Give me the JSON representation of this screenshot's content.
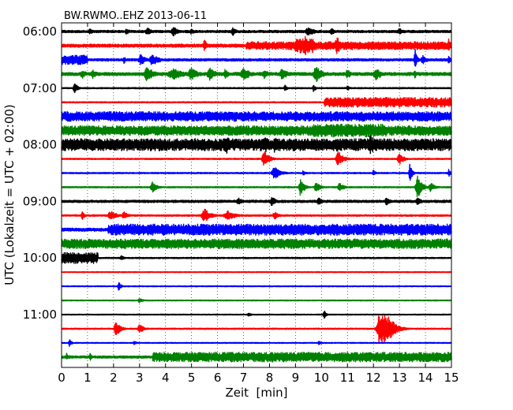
{
  "chart_data": {
    "type": "line",
    "title": "BW.RWMO..EHZ 2013-06-11",
    "xlabel": "Zeit  [min]",
    "ylabel": "UTC (Lokalzeit = UTC + 02:00)",
    "xlim": [
      0,
      15
    ],
    "x_ticks": [
      "0",
      "1",
      "2",
      "3",
      "4",
      "5",
      "6",
      "7",
      "8",
      "9",
      "10",
      "11",
      "12",
      "13",
      "14",
      "15"
    ],
    "y_tick_labels": [
      "06:00",
      "07:00",
      "08:00",
      "09:00",
      "10:00",
      "11:00"
    ],
    "y_tick_rows": [
      0,
      4,
      8,
      12,
      16,
      20
    ],
    "grid": "vertical dotted at each minute",
    "colors": {
      "black": "#000000",
      "red": "#ff0000",
      "blue": "#0000ff",
      "green": "#008000"
    },
    "traces": [
      {
        "start": "06:00",
        "color": "black",
        "base_amp": 1.5,
        "bands": [],
        "events": [
          [
            1.1,
            0.08,
            4
          ],
          [
            2.5,
            0.08,
            4
          ],
          [
            3.3,
            0.1,
            5
          ],
          [
            4.3,
            0.1,
            7
          ],
          [
            5.0,
            0.08,
            4
          ],
          [
            6.6,
            0.1,
            5
          ],
          [
            9.5,
            0.15,
            6
          ],
          [
            10.4,
            0.1,
            4
          ],
          [
            13.0,
            0.15,
            4
          ]
        ]
      },
      {
        "start": "06:15",
        "color": "red",
        "base_amp": 2.0,
        "bands": [
          [
            7.1,
            15.0,
            5
          ],
          [
            9.0,
            9.7,
            9
          ]
        ],
        "events": [
          [
            5.5,
            0.05,
            10
          ],
          [
            9.4,
            0.3,
            12
          ],
          [
            10.6,
            0.1,
            12
          ],
          [
            14.9,
            0.05,
            10
          ]
        ]
      },
      {
        "start": "06:30",
        "color": "blue",
        "base_amp": 1.5,
        "bands": [
          [
            0.0,
            1.0,
            6
          ]
        ],
        "events": [
          [
            2.4,
            0.05,
            5
          ],
          [
            3.05,
            0.12,
            7
          ],
          [
            3.5,
            0.15,
            8
          ],
          [
            13.6,
            0.05,
            14
          ],
          [
            13.9,
            0.1,
            6
          ],
          [
            14.9,
            0.05,
            7
          ]
        ]
      },
      {
        "start": "06:45",
        "color": "green",
        "base_amp": 2.0,
        "bands": [],
        "events": [
          [
            0.8,
            0.1,
            6
          ],
          [
            1.2,
            0.1,
            6
          ],
          [
            3.3,
            0.15,
            10
          ],
          [
            4.3,
            0.3,
            7
          ],
          [
            5.0,
            0.15,
            9
          ],
          [
            5.7,
            0.15,
            8
          ],
          [
            6.3,
            0.1,
            6
          ],
          [
            7.0,
            0.15,
            9
          ],
          [
            7.8,
            0.1,
            6
          ],
          [
            8.5,
            0.15,
            7
          ],
          [
            9.8,
            0.15,
            10
          ],
          [
            11.0,
            0.1,
            6
          ],
          [
            12.1,
            0.15,
            8
          ],
          [
            13.6,
            0.05,
            6
          ]
        ]
      },
      {
        "start": "07:00",
        "color": "black",
        "base_amp": 0.8,
        "bands": [],
        "events": [
          [
            0.5,
            0.06,
            9
          ],
          [
            8.6,
            0.05,
            5
          ],
          [
            9.7,
            0.05,
            5
          ],
          [
            11.0,
            0.05,
            4
          ]
        ]
      },
      {
        "start": "07:15",
        "color": "red",
        "base_amp": 0.8,
        "bands": [
          [
            10.1,
            15.0,
            6
          ]
        ],
        "events": []
      },
      {
        "start": "07:30",
        "color": "blue",
        "base_amp": 6.0,
        "bands": [],
        "events": []
      },
      {
        "start": "07:45",
        "color": "green",
        "base_amp": 6.0,
        "bands": [
          [
            9.7,
            12.5,
            8
          ]
        ],
        "events": [
          [
            11.9,
            0.08,
            14
          ]
        ]
      },
      {
        "start": "08:00",
        "color": "black",
        "base_amp": 7.5,
        "bands": [],
        "events": [
          [
            6.3,
            0.15,
            14
          ],
          [
            7.85,
            0.1,
            14
          ],
          [
            8.2,
            0.1,
            10
          ],
          [
            10.6,
            0.05,
            12
          ],
          [
            11.9,
            0.2,
            13
          ],
          [
            14.3,
            0.08,
            8
          ]
        ]
      },
      {
        "start": "08:15",
        "color": "red",
        "base_amp": 0.8,
        "bands": [],
        "events": [
          [
            7.8,
            0.12,
            10
          ],
          [
            10.65,
            0.12,
            10
          ],
          [
            13.0,
            0.1,
            8
          ]
        ]
      },
      {
        "start": "08:30",
        "color": "blue",
        "base_amp": 0.8,
        "bands": [],
        "events": [
          [
            8.2,
            0.15,
            8
          ],
          [
            9.3,
            0.05,
            4
          ],
          [
            12.0,
            0.05,
            4
          ],
          [
            13.4,
            0.05,
            14
          ],
          [
            14.9,
            0.05,
            5
          ]
        ]
      },
      {
        "start": "08:45",
        "color": "green",
        "base_amp": 0.8,
        "bands": [],
        "events": [
          [
            3.5,
            0.1,
            7
          ],
          [
            9.2,
            0.08,
            12
          ],
          [
            9.8,
            0.1,
            7
          ],
          [
            10.7,
            0.1,
            6
          ],
          [
            13.7,
            0.1,
            16
          ],
          [
            14.2,
            0.1,
            6
          ]
        ]
      },
      {
        "start": "09:00",
        "color": "black",
        "base_amp": 1.5,
        "bands": [],
        "events": [
          [
            6.8,
            0.1,
            5
          ],
          [
            8.1,
            0.1,
            6
          ],
          [
            9.9,
            0.1,
            5
          ],
          [
            12.5,
            0.1,
            5
          ],
          [
            13.7,
            0.1,
            5
          ]
        ]
      },
      {
        "start": "09:15",
        "color": "red",
        "base_amp": 1.0,
        "bands": [],
        "events": [
          [
            0.8,
            0.05,
            6
          ],
          [
            1.9,
            0.15,
            6
          ],
          [
            2.4,
            0.1,
            5
          ],
          [
            5.5,
            0.15,
            9
          ],
          [
            6.4,
            0.2,
            6
          ],
          [
            8.2,
            0.1,
            5
          ]
        ]
      },
      {
        "start": "09:30",
        "color": "blue",
        "base_amp": 2.0,
        "bands": [
          [
            1.8,
            15.0,
            7
          ]
        ],
        "events": []
      },
      {
        "start": "09:45",
        "color": "green",
        "base_amp": 6.0,
        "bands": [],
        "events": []
      },
      {
        "start": "10:00",
        "color": "black",
        "base_amp": 0.8,
        "bands": [
          [
            0.0,
            1.4,
            7
          ]
        ],
        "events": [
          [
            2.3,
            0.08,
            3
          ]
        ]
      },
      {
        "start": "10:15",
        "color": "red",
        "base_amp": 0.6,
        "bands": [],
        "events": []
      },
      {
        "start": "10:30",
        "color": "blue",
        "base_amp": 0.6,
        "bands": [],
        "events": [
          [
            2.2,
            0.05,
            6
          ]
        ]
      },
      {
        "start": "10:45",
        "color": "green",
        "base_amp": 0.6,
        "bands": [],
        "events": [
          [
            3.0,
            0.08,
            3
          ]
        ]
      },
      {
        "start": "11:00",
        "color": "black",
        "base_amp": 0.6,
        "bands": [],
        "events": [
          [
            7.2,
            0.1,
            2
          ],
          [
            10.1,
            0.05,
            7
          ]
        ]
      },
      {
        "start": "11:15",
        "color": "red",
        "base_amp": 0.8,
        "bands": [],
        "events": [
          [
            2.1,
            0.1,
            10
          ],
          [
            3.0,
            0.1,
            6
          ],
          [
            12.3,
            0.2,
            28
          ],
          [
            12.6,
            0.15,
            18
          ]
        ]
      },
      {
        "start": "11:30",
        "color": "blue",
        "base_amp": 0.6,
        "bands": [],
        "events": [
          [
            0.3,
            0.05,
            5
          ],
          [
            2.8,
            0.05,
            3
          ],
          [
            9.9,
            0.05,
            3
          ]
        ]
      },
      {
        "start": "11:45",
        "color": "green",
        "base_amp": 1.5,
        "bands": [
          [
            3.5,
            15.0,
            6
          ]
        ],
        "events": [
          [
            0.2,
            0.05,
            5
          ],
          [
            1.1,
            0.05,
            5
          ]
        ]
      }
    ]
  }
}
